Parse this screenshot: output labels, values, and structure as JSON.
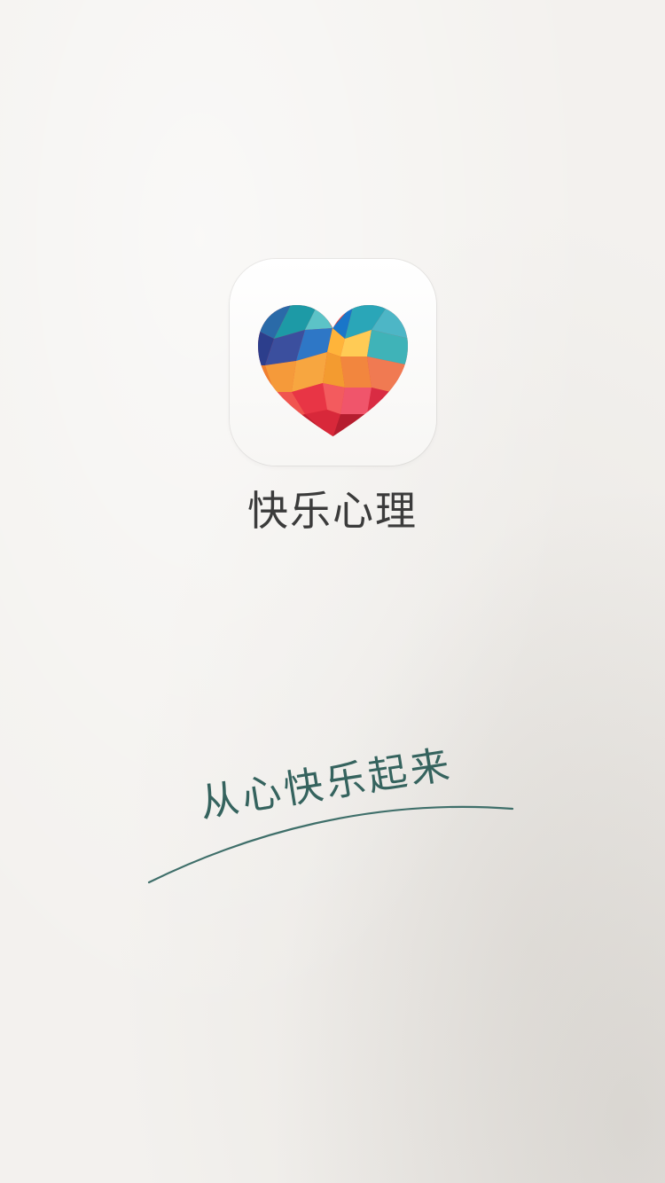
{
  "app": {
    "name": "快乐心理",
    "slogan": "从心快乐起来",
    "icon": "heart-logo-icon"
  },
  "colors": {
    "background": "#f3f1ee",
    "title_text": "#3b3b3b",
    "slogan_text": "#35635e"
  }
}
